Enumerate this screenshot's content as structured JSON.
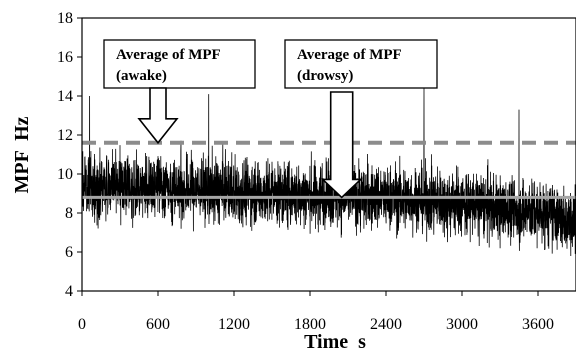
{
  "chart_data": {
    "type": "line",
    "xlabel": "Time  s",
    "ylabel": "MPF  Hz",
    "xlim": [
      0,
      3900
    ],
    "ylim": [
      4,
      18
    ],
    "xticks": [
      0,
      600,
      1200,
      1800,
      2400,
      3000,
      3600
    ],
    "yticks": [
      4,
      6,
      8,
      10,
      12,
      14,
      16,
      18
    ],
    "series": [
      {
        "style": "noisy-signal",
        "color": "#000000",
        "samples": 3900,
        "trend": [
          [
            0,
            9.4
          ],
          [
            600,
            9.3
          ],
          [
            1200,
            9.1
          ],
          [
            1800,
            8.9
          ],
          [
            2400,
            8.8
          ],
          [
            3000,
            8.5
          ],
          [
            3600,
            8.0
          ],
          [
            3900,
            7.6
          ]
        ],
        "spread": 1.1,
        "spikes": [
          [
            60,
            14.0
          ],
          [
            1000,
            14.1
          ],
          [
            2700,
            14.4
          ],
          [
            3450,
            13.3
          ]
        ]
      }
    ],
    "reference_lines": [
      {
        "value": 11.6,
        "style": "dashed",
        "color": "#8c8c8c"
      },
      {
        "value": 8.8,
        "style": "solid",
        "color": "#a6a6a6"
      }
    ],
    "annotations": [
      {
        "line1": "Average of MPF",
        "line2": "(awake)",
        "arrow_x": 600,
        "arrow_tip": 11.6,
        "arrow_type": "short"
      },
      {
        "line1": "Average of MPF",
        "line2": "(drowsy)",
        "arrow_x": 2050,
        "arrow_tip": 8.8,
        "arrow_type": "long"
      }
    ],
    "grid": false
  }
}
